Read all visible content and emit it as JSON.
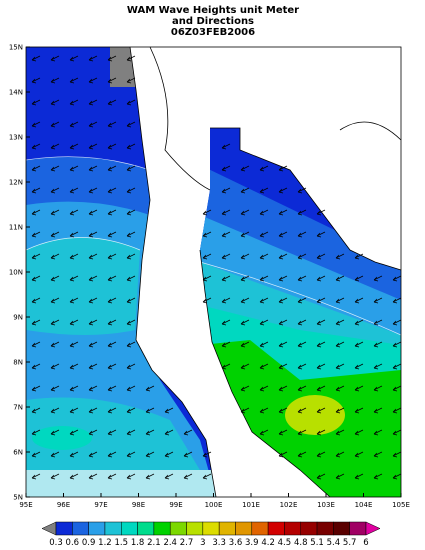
{
  "title": [
    "WAM Wave Heights unit Meter",
    "and Directions",
    "06Z03FEB2006"
  ],
  "lon_ticks": [
    "95E",
    "96E",
    "97E",
    "98E",
    "99E",
    "100E",
    "101E",
    "102E",
    "103E",
    "104E",
    "105E"
  ],
  "lat_ticks": [
    "5N",
    "6N",
    "7N",
    "8N",
    "9N",
    "10N",
    "11N",
    "12N",
    "13N",
    "14N",
    "15N"
  ],
  "colorbar": {
    "labels": [
      "0.3",
      "0.6",
      "0.9",
      "1.2",
      "1.5",
      "1.8",
      "2.1",
      "2.4",
      "2.7",
      "3",
      "3.3",
      "3.6",
      "3.9",
      "4.2",
      "4.5",
      "4.8",
      "5.1",
      "5.4",
      "5.7",
      "6"
    ],
    "under_color": "#808080",
    "colors": [
      "#0c2ad6",
      "#1b64e0",
      "#2a9fe8",
      "#1ec2d6",
      "#00d8c0",
      "#00dc8c",
      "#00d200",
      "#7cd800",
      "#b8e000",
      "#dcdc00",
      "#e0b400",
      "#e09600",
      "#e06400",
      "#d20000",
      "#b40000",
      "#960000",
      "#780000",
      "#5a0000",
      "#a00064"
    ],
    "over_color": "#e000a0"
  }
}
